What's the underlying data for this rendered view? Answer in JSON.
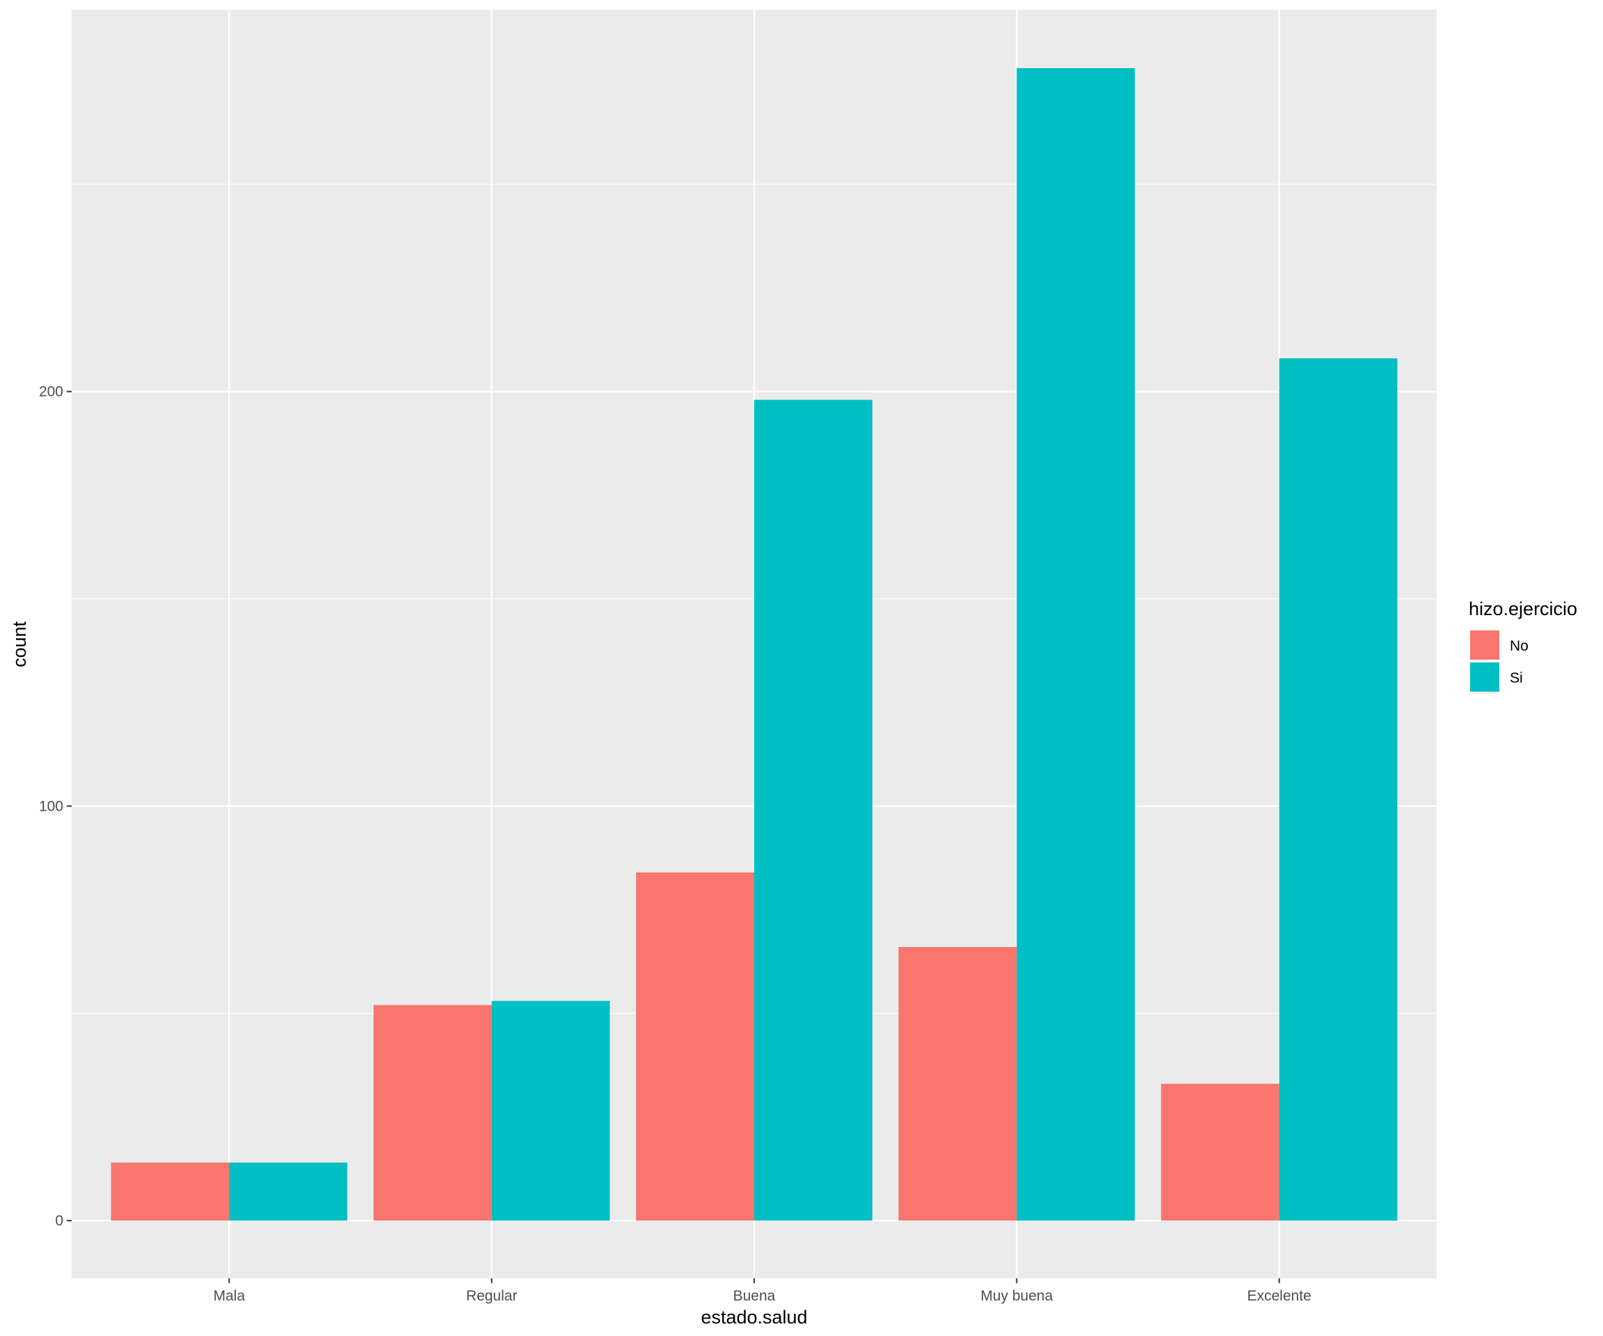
{
  "chart_data": {
    "type": "bar",
    "categories": [
      "Mala",
      "Regular",
      "Buena",
      "Muy buena",
      "Excelente"
    ],
    "series": [
      {
        "name": "No",
        "values": [
          14,
          52,
          84,
          66,
          33
        ],
        "color": "#F8766D"
      },
      {
        "name": "Si",
        "values": [
          14,
          53,
          198,
          278,
          208
        ],
        "color": "#00BFC4"
      }
    ],
    "xlabel": "estado.salud",
    "ylabel": "count",
    "yticks": [
      0,
      100,
      200
    ],
    "ylim": [
      -13.9,
      292.1
    ],
    "grid": true,
    "legend": {
      "title": "hizo.ejercicio",
      "position": "right"
    },
    "panel_background": "#EBEBEB"
  }
}
